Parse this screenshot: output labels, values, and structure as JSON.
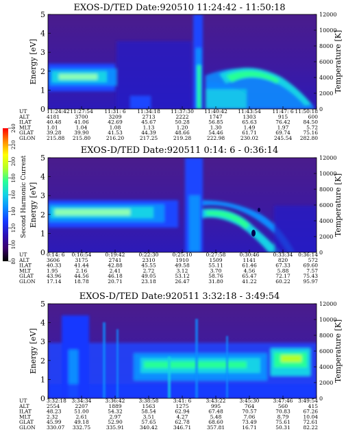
{
  "colorbar": {
    "label": "Second Harmonic Current",
    "ticks": [
      "80",
      "100",
      "120",
      "140",
      "160",
      "180",
      "200",
      "220",
      "240"
    ],
    "colors": [
      "#000000",
      "#3a006e",
      "#2a10b8",
      "#1438ff",
      "#0a8cff",
      "#14d2e6",
      "#28ff96",
      "#b4ff28",
      "#ffff00",
      "#ff8c00",
      "#ff0000"
    ]
  },
  "chart_data": [
    {
      "type": "heatmap",
      "title": "EXOS-D/TED  Date:920510  11:24:42 - 11:50:18",
      "ylabel": "Energy [eV]",
      "y2label": "Temperature [K]",
      "ylim": [
        0,
        5
      ],
      "y2lim": [
        0,
        12000
      ],
      "yticks": [
        "0",
        "1",
        "2",
        "3",
        "4",
        "5"
      ],
      "y2ticks": [
        "0",
        "2000",
        "4000",
        "6000",
        "8000",
        "10000",
        "12000"
      ],
      "row_labels": [
        "UT",
        "ALT",
        "ILAT",
        "MLT",
        "GLAT",
        "GLON"
      ],
      "columns": [
        [
          "11:24:42",
          "4181",
          "40.48",
          "1.01",
          "39.28",
          "215.88"
        ],
        [
          "11:27:54",
          "3700",
          "41.06",
          "1.04",
          "39.90",
          "215.80"
        ],
        [
          "11:31: 6",
          "3209",
          "42.69",
          "1.08",
          "41.53",
          "216.20"
        ],
        [
          "11:34:18",
          "2713",
          "45.67",
          "1.13",
          "44.39",
          "217.25"
        ],
        [
          "11:37:30",
          "2222",
          "50.28",
          "1.20",
          "48.66",
          "219.28"
        ],
        [
          "11:40:42",
          "1747",
          "56.85",
          "1.30",
          "54.46",
          "222.98"
        ],
        [
          "11:43:54",
          "1303",
          "65.63",
          "1.49",
          "61.71",
          "230.02"
        ],
        [
          "11:47: 6",
          "915",
          "76.42",
          "1.97",
          "69.74",
          "245.54"
        ],
        [
          "11:50:18",
          "600",
          "84.50",
          "5.72",
          "75.16",
          "282.80"
        ]
      ]
    },
    {
      "type": "heatmap",
      "title": "EXOS-D/TED   Date:920511  0:14: 6 - 0:36:14",
      "ylabel": "Energy [eV]",
      "y2label": "Temperature [K]",
      "ylim": [
        0,
        5
      ],
      "y2lim": [
        0,
        12000
      ],
      "yticks": [
        "0",
        "1",
        "2",
        "3",
        "4",
        "5"
      ],
      "y2ticks": [
        "0",
        "2000",
        "4000",
        "6000",
        "8000",
        "10000",
        "12000"
      ],
      "row_labels": [
        "UT",
        "ALT",
        "ILAT",
        "MLT",
        "GLAT",
        "GLON"
      ],
      "columns": [
        [
          "0:14: 6",
          "3606",
          "40.33",
          "1.95",
          "43.96",
          "17.14"
        ],
        [
          "0:16:54",
          "3175",
          "41.44",
          "2.16",
          "44.56",
          "18.78"
        ],
        [
          "0:19:42",
          "2741",
          "42.88",
          "2.41",
          "46.18",
          "20.71"
        ],
        [
          "0:22:30",
          "2310",
          "45.55",
          "2.72",
          "49.05",
          "23.18"
        ],
        [
          "0:25:10",
          "1910",
          "49.58",
          "3.12",
          "53.12",
          "26.47"
        ],
        [
          "0:27:58",
          "1509",
          "55.11",
          "3.70",
          "58.76",
          "31.80"
        ],
        [
          "0:30:46",
          "1141",
          "61.46",
          "4.56",
          "65.47",
          "41.22"
        ],
        [
          "0:33:34",
          "820",
          "67.33",
          "5.88",
          "72.17",
          "60.22"
        ],
        [
          "0:36:14",
          "572",
          "69.60",
          "7.57",
          "75.43",
          "95.97"
        ]
      ]
    },
    {
      "type": "heatmap",
      "title": "EXOS-D/TED  Date:920511  3:32:18 - 3:49:54",
      "ylabel": "Energy [eV]",
      "y2label": "Temperature [K]",
      "ylim": [
        0,
        5
      ],
      "y2lim": [
        0,
        12000
      ],
      "yticks": [
        "0",
        "1",
        "2",
        "3",
        "4",
        "5"
      ],
      "y2ticks": [
        "0",
        "2000",
        "4000",
        "6000",
        "8000",
        "10000",
        "12000"
      ],
      "row_labels": [
        "UT",
        "ALT",
        "ILAT",
        "MLT",
        "GLAT",
        "GLON"
      ],
      "columns": [
        [
          "3:32:18",
          "2554",
          "48.23",
          "2.32",
          "45.99",
          "330.07"
        ],
        [
          "3:34:34",
          "2207",
          "51.00",
          "2.61",
          "49.18",
          "332.75"
        ],
        [
          "3:36:42",
          "1889",
          "54.32",
          "2.97",
          "52.90",
          "335.91"
        ],
        [
          "3:38:58",
          "1563",
          "58.54",
          "3.51",
          "57.65",
          "340.42"
        ],
        [
          "3:41: 6",
          "1275",
          "62.94",
          "4.27",
          "62.78",
          "346.71"
        ],
        [
          "3:43:22",
          "995",
          "67.48",
          "5.48",
          "68.60",
          "357.81"
        ],
        [
          "3:45:30",
          "764",
          "70.57",
          "7.06",
          "73.49",
          "16.71"
        ],
        [
          "3:47:46",
          "560",
          "70.83",
          "8.79",
          "75.61",
          "50.31"
        ],
        [
          "3:49:54",
          "415",
          "67.26",
          "10.04",
          "72.61",
          "82.22"
        ]
      ]
    }
  ]
}
